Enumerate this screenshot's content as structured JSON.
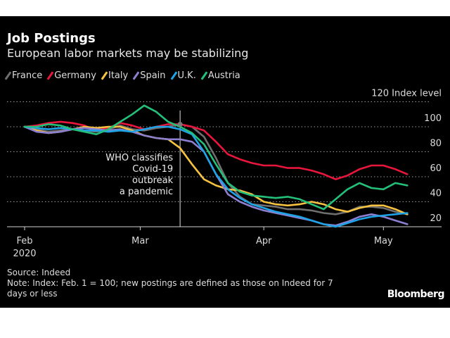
{
  "header": {
    "title": "Job Postings",
    "subtitle": "European labor markets may be stabilizing"
  },
  "footer": {
    "source": "Source: Indeed",
    "note_line1": "Note: Index: Feb. 1 = 100; new postings are defined as those on Indeed for 7",
    "note_line2": "days or less",
    "brand": "Bloomberg"
  },
  "chart_data": {
    "type": "line",
    "title": "Job Postings",
    "subtitle": "European labor markets may be stabilizing",
    "xlabel": "",
    "ylabel": "Index level",
    "ylim": [
      0,
      120
    ],
    "yticks": [
      20,
      40,
      60,
      80,
      100,
      120
    ],
    "ytick_unit_label": "Index level",
    "grid": true,
    "legend_position": "top-left",
    "x_unit": "days since Feb 1, 2020",
    "xticks": [
      {
        "day": 0,
        "label": "Feb",
        "sublabel": "2020"
      },
      {
        "day": 29,
        "label": "Mar",
        "sublabel": ""
      },
      {
        "day": 60,
        "label": "Apr",
        "sublabel": ""
      },
      {
        "day": 90,
        "label": "May",
        "sublabel": ""
      }
    ],
    "x": [
      0,
      3,
      6,
      9,
      12,
      15,
      18,
      21,
      24,
      27,
      30,
      33,
      36,
      39,
      42,
      45,
      48,
      51,
      54,
      57,
      60,
      63,
      66,
      69,
      72,
      75,
      78,
      81,
      84,
      87,
      90,
      93,
      96
    ],
    "annotation": {
      "day": 39,
      "lines": [
        "WHO classifies",
        "Covid-19",
        "outbreak",
        "a pandemic"
      ]
    },
    "series": [
      {
        "name": "France",
        "color": "#6e6e6e",
        "values": [
          100,
          98,
          96,
          97,
          98,
          97,
          96,
          98,
          101,
          98,
          97,
          99,
          100,
          102,
          100,
          92,
          75,
          55,
          44,
          38,
          37,
          36,
          34,
          34,
          33,
          31,
          30,
          32,
          36,
          36,
          35,
          32,
          30
        ]
      },
      {
        "name": "Germany",
        "color": "#e8163c",
        "values": [
          100,
          101,
          103,
          104,
          103,
          101,
          97,
          99,
          103,
          101,
          98,
          100,
          102,
          102,
          100,
          97,
          88,
          78,
          74,
          71,
          69,
          69,
          67,
          67,
          65,
          62,
          58,
          61,
          66,
          69,
          69,
          66,
          62
        ]
      },
      {
        "name": "Italy",
        "color": "#f5c242",
        "values": [
          100,
          97,
          95,
          96,
          98,
          100,
          99,
          100,
          100,
          97,
          93,
          91,
          90,
          83,
          70,
          58,
          53,
          50,
          49,
          46,
          40,
          38,
          37,
          38,
          40,
          38,
          34,
          32,
          35,
          37,
          37,
          34,
          30
        ]
      },
      {
        "name": "Spain",
        "color": "#8c7fd0",
        "values": [
          100,
          96,
          95,
          96,
          98,
          99,
          98,
          97,
          98,
          96,
          93,
          91,
          90,
          90,
          88,
          80,
          62,
          46,
          40,
          36,
          33,
          31,
          29,
          27,
          25,
          22,
          21,
          24,
          28,
          30,
          28,
          25,
          22
        ]
      },
      {
        "name": "U.K.",
        "color": "#1ea3e6",
        "values": [
          100,
          99,
          98,
          99,
          98,
          97,
          97,
          96,
          97,
          96,
          98,
          100,
          100,
          98,
          94,
          80,
          62,
          50,
          43,
          38,
          35,
          32,
          30,
          28,
          25,
          22,
          20,
          23,
          26,
          28,
          29,
          30,
          31
        ]
      },
      {
        "name": "Austria",
        "color": "#24c07a",
        "values": [
          100,
          100,
          102,
          101,
          98,
          96,
          94,
          98,
          104,
          110,
          117,
          112,
          104,
          100,
          95,
          86,
          70,
          55,
          48,
          45,
          44,
          43,
          44,
          42,
          38,
          34,
          42,
          50,
          55,
          51,
          50,
          55,
          53
        ]
      }
    ]
  }
}
